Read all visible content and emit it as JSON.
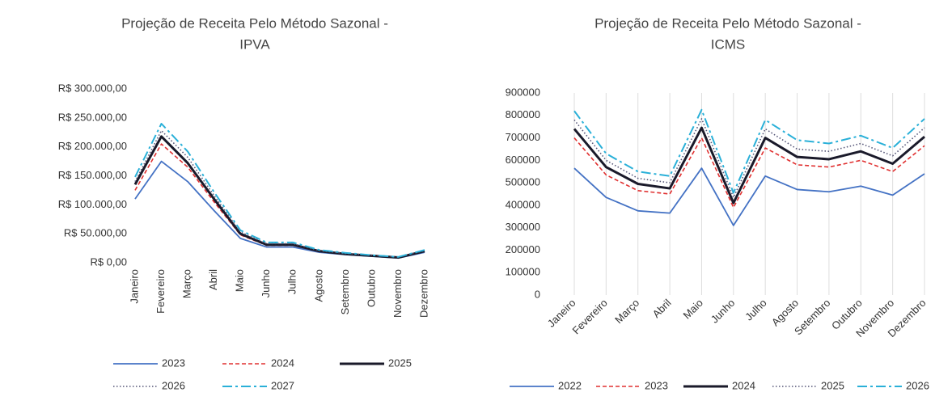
{
  "chart_data": [
    {
      "type": "line",
      "title": [
        "Projeção de Receita Pelo Método Sazonal -",
        "IPVA"
      ],
      "categories": [
        "Janeiro",
        "Fevereiro",
        "Março",
        "Abril",
        "Maio",
        "Junho",
        "Julho",
        "Agosto",
        "Setembro",
        "Outubro",
        "Novembro",
        "Dezembro"
      ],
      "ylim": [
        0,
        300000
      ],
      "yticks": [
        {
          "value": 0,
          "label": "R$ 0,00"
        },
        {
          "value": 50000,
          "label": "R$ 50.000,00"
        },
        {
          "value": 100000,
          "label": "R$ 100.000,00"
        },
        {
          "value": 150000,
          "label": "R$ 150.000,00"
        },
        {
          "value": 200000,
          "label": "R$ 200.000,00"
        },
        {
          "value": 250000,
          "label": "R$ 250.000,00"
        },
        {
          "value": 300000,
          "label": "R$ 300.000,00"
        }
      ],
      "grid": false,
      "series": [
        {
          "name": "2023",
          "color": "#4472c4",
          "style": "solid",
          "values": [
            110000,
            175000,
            140000,
            90000,
            42000,
            27000,
            27000,
            18000,
            14000,
            11000,
            8000,
            18000
          ]
        },
        {
          "name": "2024",
          "color": "#e03030",
          "style": "dashed",
          "values": [
            125000,
            205000,
            165000,
            105000,
            48000,
            30000,
            30000,
            19000,
            15000,
            12000,
            9000,
            19000
          ]
        },
        {
          "name": "2025",
          "color": "#1a1a2a",
          "style": "bold",
          "values": [
            135000,
            218000,
            172000,
            110000,
            50000,
            31000,
            31000,
            20000,
            15000,
            12000,
            9000,
            20000
          ]
        },
        {
          "name": "2026",
          "color": "#555577",
          "style": "dotted",
          "values": [
            140000,
            228000,
            182000,
            116000,
            53000,
            33000,
            33000,
            21000,
            16000,
            13000,
            10000,
            21000
          ]
        },
        {
          "name": "2027",
          "color": "#2ab0d8",
          "style": "dashdot",
          "values": [
            148000,
            240000,
            192000,
            122000,
            56000,
            35000,
            35000,
            22000,
            17000,
            13000,
            10000,
            22000
          ]
        }
      ]
    },
    {
      "type": "line",
      "title": [
        "Projeção de Receita Pelo Método Sazonal -",
        "ICMS"
      ],
      "categories": [
        "Janeiro",
        "Fevereiro",
        "Março",
        "Abril",
        "Maio",
        "Junho",
        "Julho",
        "Agosto",
        "Setembro",
        "Outubro",
        "Novembro",
        "Dezembro"
      ],
      "ylim": [
        0,
        900000
      ],
      "yticks": [
        0,
        100000,
        200000,
        300000,
        400000,
        500000,
        600000,
        700000,
        800000,
        900000
      ],
      "grid": false,
      "xgrid": true,
      "series": [
        {
          "name": "2022",
          "color": "#4472c4",
          "style": "solid",
          "values": [
            565000,
            435000,
            375000,
            365000,
            565000,
            310000,
            530000,
            470000,
            460000,
            485000,
            445000,
            540000
          ]
        },
        {
          "name": "2023",
          "color": "#e03030",
          "style": "dashed",
          "values": [
            700000,
            535000,
            465000,
            450000,
            700000,
            390000,
            655000,
            580000,
            570000,
            600000,
            550000,
            665000
          ]
        },
        {
          "name": "2024",
          "color": "#1a1a2a",
          "style": "bold",
          "values": [
            740000,
            570000,
            495000,
            475000,
            745000,
            410000,
            700000,
            615000,
            605000,
            640000,
            585000,
            705000
          ]
        },
        {
          "name": "2025",
          "color": "#555577",
          "style": "dotted",
          "values": [
            780000,
            600000,
            520000,
            500000,
            785000,
            435000,
            740000,
            650000,
            640000,
            675000,
            620000,
            745000
          ]
        },
        {
          "name": "2026",
          "color": "#2ab0d8",
          "style": "dashdot",
          "values": [
            820000,
            630000,
            550000,
            530000,
            825000,
            455000,
            780000,
            690000,
            675000,
            710000,
            655000,
            785000
          ]
        }
      ]
    }
  ]
}
